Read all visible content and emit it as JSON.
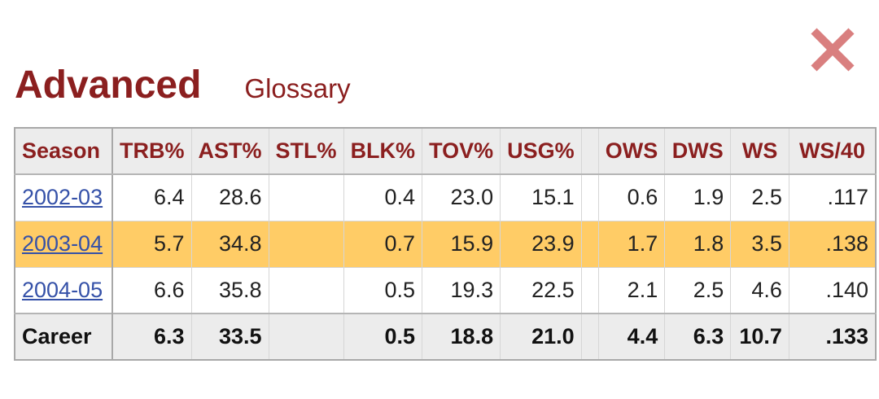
{
  "header": {
    "title": "Advanced",
    "glossary_link": "Glossary"
  },
  "close_icon": "close-x-icon",
  "colors": {
    "accent": "#8b1f1f",
    "highlight_row": "#ffcc66",
    "link": "#3551a8",
    "close": "#d97f7f"
  },
  "table": {
    "columns": [
      "Season",
      "TRB%",
      "AST%",
      "STL%",
      "BLK%",
      "TOV%",
      "USG%",
      "",
      "OWS",
      "DWS",
      "WS",
      "WS/40"
    ],
    "rows": [
      {
        "season": "2002-03",
        "trb": "6.4",
        "ast": "28.6",
        "stl": "",
        "blk": "0.4",
        "tov": "23.0",
        "usg": "15.1",
        "gap": "",
        "ows": "0.6",
        "dws": "1.9",
        "ws": "2.5",
        "ws40": ".117"
      },
      {
        "season": "2003-04",
        "trb": "5.7",
        "ast": "34.8",
        "stl": "",
        "blk": "0.7",
        "tov": "15.9",
        "usg": "23.9",
        "gap": "",
        "ows": "1.7",
        "dws": "1.8",
        "ws": "3.5",
        "ws40": ".138"
      },
      {
        "season": "2004-05",
        "trb": "6.6",
        "ast": "35.8",
        "stl": "",
        "blk": "0.5",
        "tov": "19.3",
        "usg": "22.5",
        "gap": "",
        "ows": "2.1",
        "dws": "2.5",
        "ws": "4.6",
        "ws40": ".140"
      }
    ],
    "career": {
      "season": "Career",
      "trb": "6.3",
      "ast": "33.5",
      "stl": "",
      "blk": "0.5",
      "tov": "18.8",
      "usg": "21.0",
      "gap": "",
      "ows": "4.4",
      "dws": "6.3",
      "ws": "10.7",
      "ws40": ".133"
    }
  }
}
